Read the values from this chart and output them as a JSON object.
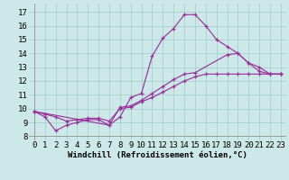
{
  "bg_color": "#cce8e8",
  "grid_color": "#aad0d0",
  "line_color": "#993399",
  "xlabel": "Windchill (Refroidissement éolien,°C)",
  "yticks": [
    8,
    9,
    10,
    11,
    12,
    13,
    14,
    15,
    16,
    17
  ],
  "xticks": [
    0,
    1,
    2,
    3,
    4,
    5,
    6,
    7,
    8,
    9,
    10,
    11,
    12,
    13,
    14,
    15,
    16,
    17,
    18,
    19,
    20,
    21,
    22,
    23
  ],
  "xlim": [
    -0.5,
    23.5
  ],
  "ylim": [
    7.7,
    17.6
  ],
  "curve1_x": [
    0,
    1,
    2,
    3,
    4,
    5,
    6,
    7,
    8,
    9,
    10,
    11,
    12,
    13,
    14,
    15,
    16,
    17,
    18,
    19,
    20,
    21,
    22,
    23
  ],
  "curve1_y": [
    9.8,
    9.4,
    8.4,
    8.8,
    9.0,
    9.2,
    9.2,
    8.8,
    9.4,
    10.8,
    11.1,
    13.8,
    15.1,
    15.8,
    16.8,
    16.8,
    16.0,
    15.0,
    14.5,
    14.0,
    13.3,
    13.0,
    12.5,
    12.5
  ],
  "curve2_x": [
    0,
    1,
    2,
    3,
    4,
    5,
    6,
    7,
    8,
    9,
    10,
    11,
    12,
    13,
    14,
    15,
    16,
    17,
    18,
    19,
    20,
    21,
    22,
    23
  ],
  "curve2_y": [
    9.8,
    9.6,
    9.4,
    9.1,
    9.2,
    9.3,
    9.3,
    9.1,
    10.0,
    10.1,
    10.5,
    10.8,
    11.2,
    11.6,
    12.0,
    12.3,
    12.5,
    12.5,
    12.5,
    12.5,
    12.5,
    12.5,
    12.5,
    12.5
  ],
  "curve3_x": [
    0,
    7,
    8,
    9,
    10,
    11,
    12,
    13,
    14,
    15,
    18,
    19,
    20,
    21,
    22,
    23
  ],
  "curve3_y": [
    9.8,
    8.8,
    10.1,
    10.2,
    10.6,
    11.1,
    11.6,
    12.1,
    12.5,
    12.6,
    13.9,
    14.0,
    13.3,
    12.7,
    12.5,
    12.5
  ],
  "tick_fontsize": 6.5,
  "xlabel_fontsize": 6.5,
  "lw": 0.85,
  "marker_size": 3.0
}
